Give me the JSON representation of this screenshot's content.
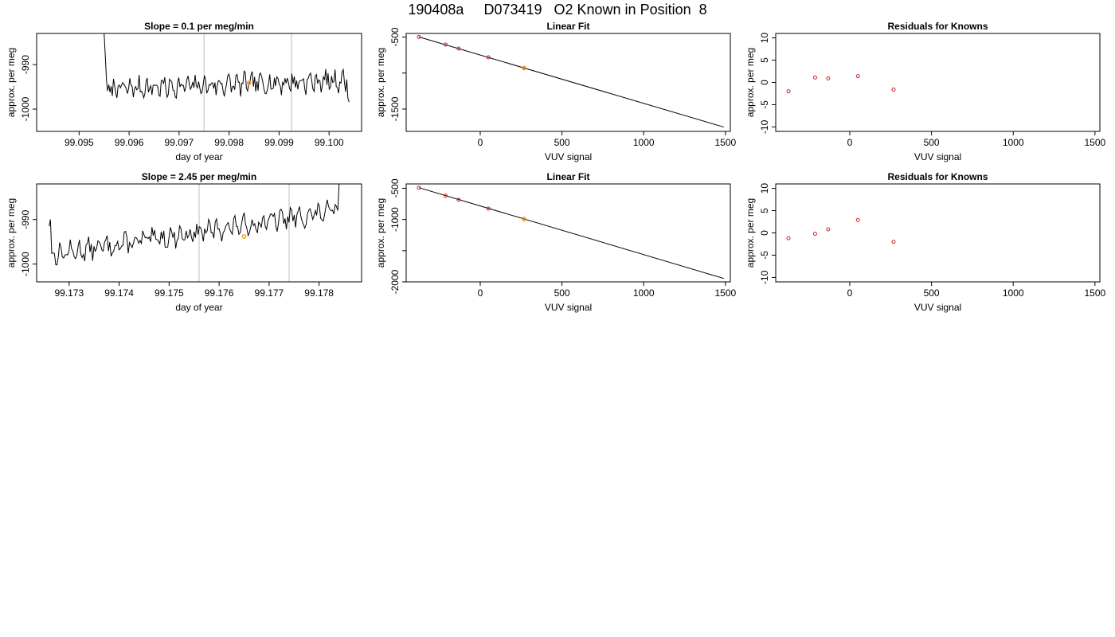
{
  "page": {
    "title": "190408a     D073419   O2 Known in Position  8"
  },
  "colors": {
    "trace": "#000000",
    "highlight": "#ff9900",
    "residual": "#cc2222",
    "vline": "#c8c8c8",
    "axis": "#000000"
  },
  "chart_data": [
    {
      "id": "ts1",
      "type": "line",
      "title": "Slope =  0.1  per meg/min",
      "xlabel": "day of year",
      "ylabel": "approx. per meg",
      "xlim": [
        99.09415,
        99.10065
      ],
      "ylim": [
        -1005,
        -983
      ],
      "xticks": [
        99.095,
        99.096,
        99.097,
        99.098,
        99.099,
        99.1
      ],
      "xtick_labels": [
        "99.095",
        "99.096",
        "99.097",
        "99.098",
        "99.099",
        "99.100"
      ],
      "yticks": [
        -1000,
        -990
      ],
      "ytick_labels": [
        "-1000",
        "-990"
      ],
      "vlines": [
        99.0975,
        99.09925
      ],
      "highlight": {
        "x": 99.0984,
        "y": -994.1
      },
      "series": {
        "x_start": 99.0955,
        "x_end": 99.1004,
        "n": 211,
        "base": -995.5,
        "trend": 2.0,
        "head": [
          -983,
          -988,
          -993.5
        ],
        "tail": [
          -997.5,
          -998.4
        ],
        "seed": 7,
        "amp": 1.8
      }
    },
    {
      "id": "fit1",
      "type": "scatter",
      "title": "Linear Fit",
      "xlabel": "VUV signal",
      "ylabel": "approx. per meg",
      "xlim": [
        -453,
        1530
      ],
      "ylim": [
        -1810,
        -450
      ],
      "xticks": [
        0,
        500,
        1000,
        1500
      ],
      "xtick_labels": [
        "0",
        "500",
        "1000",
        "1500"
      ],
      "yticks": [
        -1500,
        -1000,
        -500
      ],
      "ytick_labels": [
        "-1500",
        "",
        "-500"
      ],
      "fit_line": {
        "x": [
          -375,
          1490
        ],
        "y": [
          -498,
          -1750
        ]
      },
      "points": [
        [
          -375,
          -498
        ],
        [
          -212,
          -605
        ],
        [
          -132,
          -660
        ],
        [
          50,
          -782
        ],
        [
          268,
          -931
        ]
      ],
      "highlight": {
        "x": 268,
        "y": -931
      }
    },
    {
      "id": "res1",
      "type": "scatter",
      "title": "Residuals for Knowns",
      "xlabel": "VUV signal",
      "ylabel": "approx. per meg",
      "xlim": [
        -453,
        1530
      ],
      "ylim": [
        -11,
        11
      ],
      "xticks": [
        0,
        500,
        1000,
        1500
      ],
      "xtick_labels": [
        "0",
        "500",
        "1000",
        "1500"
      ],
      "yticks": [
        -10,
        -5,
        0,
        5,
        10
      ],
      "ytick_labels": [
        "-10",
        "-5",
        "0",
        "5",
        "10"
      ],
      "points": [
        [
          -375,
          -2.0
        ],
        [
          -212,
          1.1
        ],
        [
          -132,
          0.9
        ],
        [
          50,
          1.4
        ],
        [
          268,
          -1.6
        ]
      ]
    },
    {
      "id": "ts2",
      "type": "line",
      "title": "Slope =  2.45  per meg/min",
      "xlabel": "day of year",
      "ylabel": "approx. per meg",
      "xlim": [
        99.17235,
        99.17885
      ],
      "ylim": [
        -1004,
        -982
      ],
      "xticks": [
        99.173,
        99.174,
        99.175,
        99.176,
        99.177,
        99.178
      ],
      "xtick_labels": [
        "99.173",
        "99.174",
        "99.175",
        "99.176",
        "99.177",
        "99.178"
      ],
      "yticks": [
        -1000,
        -990
      ],
      "ytick_labels": [
        "-1000",
        "-990"
      ],
      "vlines": [
        99.1756,
        99.1774
      ],
      "highlight": {
        "x": 99.1765,
        "y": -993.8
      },
      "series": {
        "x_start": 99.1726,
        "x_end": 99.1784,
        "n": 221,
        "base": -998,
        "trend": 10.0,
        "head": [
          -991.5,
          -990
        ],
        "tail": [
          -988,
          -982
        ],
        "seed": 13,
        "amp": 1.7
      }
    },
    {
      "id": "fit2",
      "type": "scatter",
      "title": "Linear Fit",
      "xlabel": "VUV signal",
      "ylabel": "approx. per meg",
      "xlim": [
        -453,
        1530
      ],
      "ylim": [
        -2000,
        -430
      ],
      "xticks": [
        0,
        500,
        1000,
        1500
      ],
      "xtick_labels": [
        "0",
        "500",
        "1000",
        "1500"
      ],
      "yticks": [
        -2000,
        -1500,
        -1000,
        -500
      ],
      "ytick_labels": [
        "-2000",
        "",
        "-1000",
        "-500"
      ],
      "fit_line": {
        "x": [
          -375,
          1490
        ],
        "y": [
          -490,
          -1945
        ]
      },
      "points": [
        [
          -375,
          -490
        ],
        [
          -212,
          -620
        ],
        [
          -132,
          -683
        ],
        [
          50,
          -825
        ],
        [
          268,
          -994
        ]
      ],
      "highlight": {
        "x": 268,
        "y": -994
      }
    },
    {
      "id": "res2",
      "type": "scatter",
      "title": "Residuals for Knowns",
      "xlabel": "VUV signal",
      "ylabel": "approx. per meg",
      "xlim": [
        -453,
        1530
      ],
      "ylim": [
        -11,
        11
      ],
      "xticks": [
        0,
        500,
        1000,
        1500
      ],
      "xtick_labels": [
        "0",
        "500",
        "1000",
        "1500"
      ],
      "yticks": [
        -10,
        -5,
        0,
        5,
        10
      ],
      "ytick_labels": [
        "-10",
        "-5",
        "0",
        "5",
        "10"
      ],
      "points": [
        [
          -375,
          -1.2
        ],
        [
          -212,
          -0.2
        ],
        [
          -132,
          0.8
        ],
        [
          50,
          2.9
        ],
        [
          268,
          -2.0
        ]
      ]
    }
  ]
}
